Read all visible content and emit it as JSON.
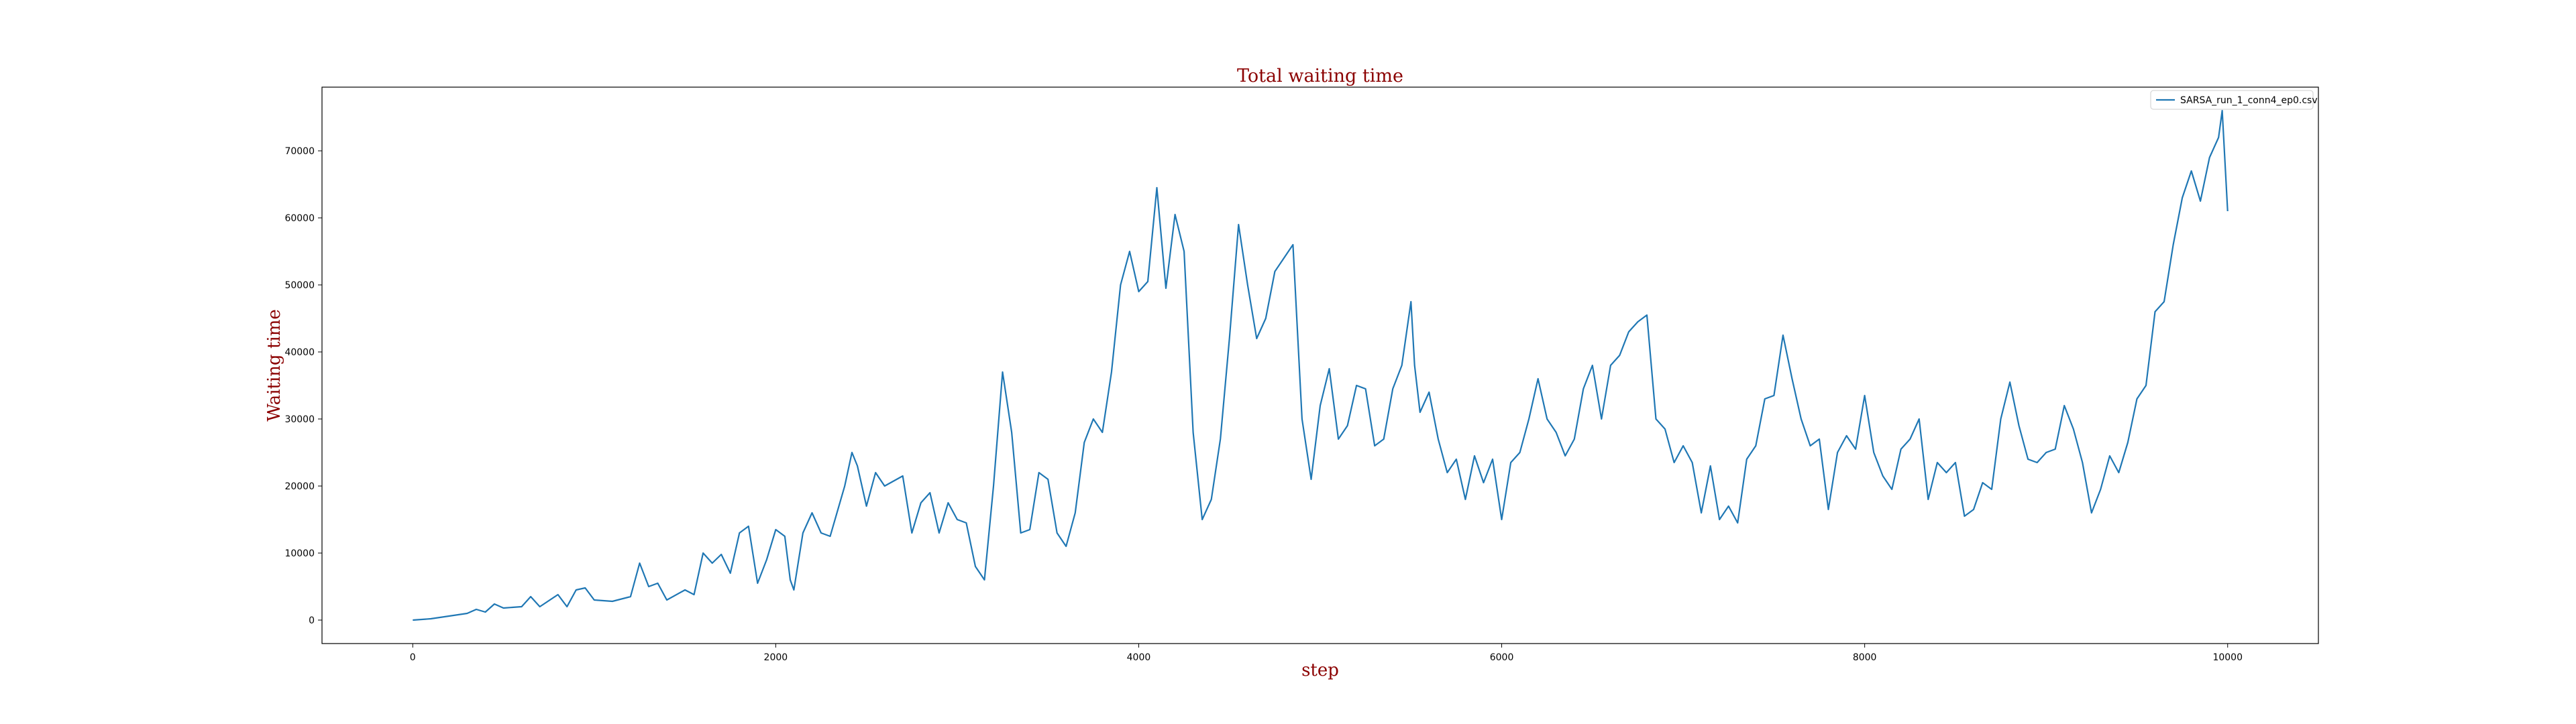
{
  "colors": {
    "line": "#1f77b4",
    "title_text": "#8b0000"
  },
  "chart_data": {
    "type": "line",
    "title": "Total waiting time",
    "xlabel": "step",
    "ylabel": "Waiting time",
    "xlim": [
      -500,
      10500
    ],
    "ylim": [
      -3500,
      79500
    ],
    "xticks": [
      0,
      2000,
      4000,
      6000,
      8000,
      10000
    ],
    "xtick_labels": [
      "0",
      "2000",
      "4000",
      "6000",
      "8000",
      "10000"
    ],
    "yticks": [
      0,
      10000,
      20000,
      30000,
      40000,
      50000,
      60000,
      70000
    ],
    "ytick_labels": [
      "0",
      "10000",
      "20000",
      "30000",
      "40000",
      "50000",
      "60000",
      "70000"
    ],
    "grid": false,
    "legend_position": "top-right",
    "series": [
      {
        "name": "SARSA_run_1_conn4_ep0.csv",
        "color": "#1f77b4",
        "points": [
          [
            0,
            0
          ],
          [
            100,
            200
          ],
          [
            200,
            600
          ],
          [
            300,
            1000
          ],
          [
            350,
            1600
          ],
          [
            400,
            1200
          ],
          [
            450,
            2400
          ],
          [
            500,
            1800
          ],
          [
            600,
            2000
          ],
          [
            650,
            3500
          ],
          [
            700,
            2000
          ],
          [
            800,
            3800
          ],
          [
            850,
            2000
          ],
          [
            900,
            4500
          ],
          [
            950,
            4800
          ],
          [
            1000,
            3000
          ],
          [
            1100,
            2800
          ],
          [
            1200,
            3500
          ],
          [
            1250,
            8500
          ],
          [
            1300,
            5000
          ],
          [
            1350,
            5500
          ],
          [
            1400,
            3000
          ],
          [
            1500,
            4500
          ],
          [
            1550,
            3800
          ],
          [
            1600,
            10000
          ],
          [
            1650,
            8500
          ],
          [
            1700,
            9800
          ],
          [
            1750,
            7000
          ],
          [
            1800,
            13000
          ],
          [
            1850,
            14000
          ],
          [
            1900,
            5500
          ],
          [
            1950,
            9000
          ],
          [
            2000,
            13500
          ],
          [
            2050,
            12500
          ],
          [
            2080,
            6000
          ],
          [
            2100,
            4500
          ],
          [
            2150,
            13000
          ],
          [
            2200,
            16000
          ],
          [
            2250,
            13000
          ],
          [
            2300,
            12500
          ],
          [
            2380,
            20000
          ],
          [
            2420,
            25000
          ],
          [
            2450,
            23000
          ],
          [
            2500,
            17000
          ],
          [
            2550,
            22000
          ],
          [
            2600,
            20000
          ],
          [
            2700,
            21500
          ],
          [
            2750,
            13000
          ],
          [
            2800,
            17500
          ],
          [
            2850,
            19000
          ],
          [
            2900,
            13000
          ],
          [
            2950,
            17500
          ],
          [
            3000,
            15000
          ],
          [
            3050,
            14500
          ],
          [
            3100,
            8000
          ],
          [
            3150,
            6000
          ],
          [
            3200,
            20000
          ],
          [
            3250,
            37000
          ],
          [
            3300,
            28000
          ],
          [
            3350,
            13000
          ],
          [
            3400,
            13500
          ],
          [
            3450,
            22000
          ],
          [
            3500,
            21000
          ],
          [
            3550,
            13000
          ],
          [
            3600,
            11000
          ],
          [
            3650,
            16000
          ],
          [
            3700,
            26500
          ],
          [
            3750,
            30000
          ],
          [
            3800,
            28000
          ],
          [
            3850,
            37000
          ],
          [
            3900,
            50000
          ],
          [
            3950,
            55000
          ],
          [
            4000,
            49000
          ],
          [
            4050,
            50500
          ],
          [
            4100,
            64500
          ],
          [
            4150,
            49500
          ],
          [
            4200,
            60500
          ],
          [
            4250,
            55000
          ],
          [
            4300,
            28000
          ],
          [
            4350,
            15000
          ],
          [
            4400,
            18000
          ],
          [
            4450,
            27000
          ],
          [
            4500,
            42000
          ],
          [
            4550,
            59000
          ],
          [
            4600,
            50000
          ],
          [
            4650,
            42000
          ],
          [
            4700,
            45000
          ],
          [
            4750,
            52000
          ],
          [
            4800,
            54000
          ],
          [
            4850,
            56000
          ],
          [
            4900,
            30000
          ],
          [
            4950,
            21000
          ],
          [
            5000,
            32000
          ],
          [
            5050,
            37500
          ],
          [
            5100,
            27000
          ],
          [
            5150,
            29000
          ],
          [
            5200,
            35000
          ],
          [
            5250,
            34500
          ],
          [
            5300,
            26000
          ],
          [
            5350,
            27000
          ],
          [
            5400,
            34500
          ],
          [
            5450,
            38000
          ],
          [
            5500,
            47500
          ],
          [
            5520,
            38000
          ],
          [
            5550,
            31000
          ],
          [
            5600,
            34000
          ],
          [
            5650,
            27000
          ],
          [
            5700,
            22000
          ],
          [
            5750,
            24000
          ],
          [
            5800,
            18000
          ],
          [
            5850,
            24500
          ],
          [
            5900,
            20500
          ],
          [
            5950,
            24000
          ],
          [
            6000,
            15000
          ],
          [
            6050,
            23500
          ],
          [
            6100,
            25000
          ],
          [
            6150,
            30000
          ],
          [
            6200,
            36000
          ],
          [
            6250,
            30000
          ],
          [
            6300,
            28000
          ],
          [
            6350,
            24500
          ],
          [
            6400,
            27000
          ],
          [
            6450,
            34500
          ],
          [
            6500,
            38000
          ],
          [
            6550,
            30000
          ],
          [
            6600,
            38000
          ],
          [
            6650,
            39500
          ],
          [
            6700,
            43000
          ],
          [
            6750,
            44500
          ],
          [
            6800,
            45500
          ],
          [
            6850,
            30000
          ],
          [
            6900,
            28500
          ],
          [
            6950,
            23500
          ],
          [
            7000,
            26000
          ],
          [
            7050,
            23500
          ],
          [
            7100,
            16000
          ],
          [
            7150,
            23000
          ],
          [
            7200,
            15000
          ],
          [
            7250,
            17000
          ],
          [
            7300,
            14500
          ],
          [
            7350,
            24000
          ],
          [
            7400,
            26000
          ],
          [
            7450,
            33000
          ],
          [
            7500,
            33500
          ],
          [
            7550,
            42500
          ],
          [
            7600,
            36000
          ],
          [
            7650,
            30000
          ],
          [
            7700,
            26000
          ],
          [
            7750,
            27000
          ],
          [
            7800,
            16500
          ],
          [
            7850,
            25000
          ],
          [
            7900,
            27500
          ],
          [
            7950,
            25500
          ],
          [
            8000,
            33500
          ],
          [
            8050,
            25000
          ],
          [
            8100,
            21500
          ],
          [
            8150,
            19500
          ],
          [
            8200,
            25500
          ],
          [
            8250,
            27000
          ],
          [
            8300,
            30000
          ],
          [
            8350,
            18000
          ],
          [
            8400,
            23500
          ],
          [
            8450,
            22000
          ],
          [
            8500,
            23500
          ],
          [
            8550,
            15500
          ],
          [
            8600,
            16500
          ],
          [
            8650,
            20500
          ],
          [
            8700,
            19500
          ],
          [
            8750,
            30000
          ],
          [
            8800,
            35500
          ],
          [
            8850,
            29000
          ],
          [
            8900,
            24000
          ],
          [
            8950,
            23500
          ],
          [
            9000,
            25000
          ],
          [
            9050,
            25500
          ],
          [
            9100,
            32000
          ],
          [
            9150,
            28500
          ],
          [
            9200,
            23500
          ],
          [
            9250,
            16000
          ],
          [
            9300,
            19500
          ],
          [
            9350,
            24500
          ],
          [
            9400,
            22000
          ],
          [
            9450,
            26500
          ],
          [
            9500,
            33000
          ],
          [
            9550,
            35000
          ],
          [
            9600,
            46000
          ],
          [
            9650,
            47500
          ],
          [
            9700,
            56000
          ],
          [
            9750,
            63000
          ],
          [
            9800,
            67000
          ],
          [
            9850,
            62500
          ],
          [
            9900,
            69000
          ],
          [
            9950,
            72000
          ],
          [
            9970,
            76000
          ],
          [
            10000,
            61000
          ]
        ]
      }
    ]
  }
}
